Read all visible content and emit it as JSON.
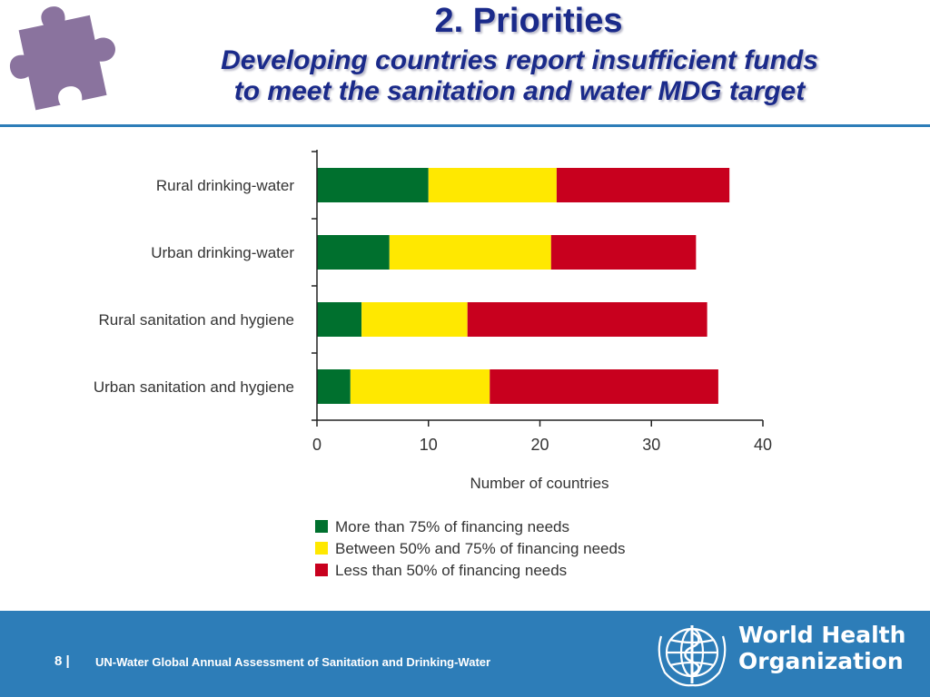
{
  "header": {
    "title": "2. Priorities",
    "subtitle_line1": "Developing countries report insufficient funds",
    "subtitle_line2": "to meet the sanitation and water MDG target",
    "logo_icon": "puzzle-piece-icon"
  },
  "chart_data": {
    "type": "bar",
    "orientation": "horizontal",
    "stacked": true,
    "categories": [
      "Rural drinking-water",
      "Urban drinking-water",
      "Rural sanitation and hygiene",
      "Urban sanitation and hygiene"
    ],
    "series": [
      {
        "name": "More than 75% of financing needs",
        "color": "#00702e",
        "values": [
          10,
          6.5,
          4,
          3
        ]
      },
      {
        "name": "Between 50% and 75% of financing needs",
        "color": "#ffe800",
        "values": [
          11.5,
          14.5,
          9.5,
          12.5
        ]
      },
      {
        "name": "Less than 50% of financing needs",
        "color": "#c8001e",
        "values": [
          15.5,
          13,
          21.5,
          20.5
        ]
      }
    ],
    "xlabel": "Number of countries",
    "xlim": [
      0,
      40
    ],
    "xticks": [
      "0",
      "10",
      "20",
      "30",
      "40"
    ],
    "grid": false,
    "legend_position": "bottom"
  },
  "footer": {
    "page_number": "8",
    "separator": "|",
    "text": "UN-Water Global Annual Assessment of Sanitation and Drinking-Water",
    "org_name_line1": "World Health",
    "org_name_line2": "Organization",
    "org_emblem": "who-emblem-icon",
    "background_color": "#2d7db8"
  }
}
